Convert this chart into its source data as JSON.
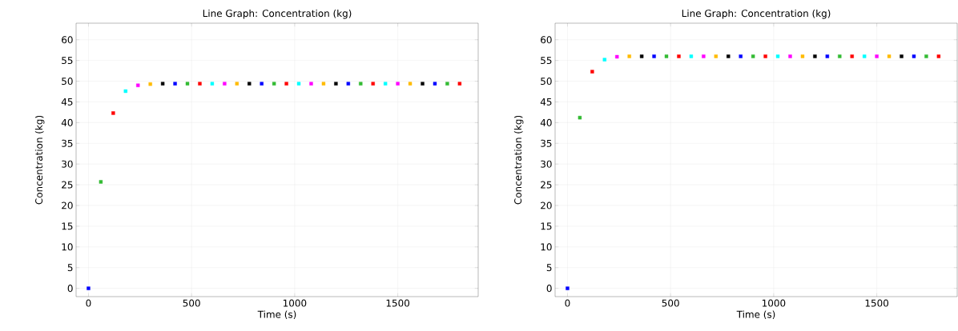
{
  "chart_data": [
    {
      "type": "scatter",
      "title": "Line Graph: Concentration (kg)",
      "xlabel": "Time (s)",
      "ylabel": "Concentration (kg)",
      "x": [
        0,
        60,
        120,
        180,
        240,
        300,
        360,
        420,
        480,
        540,
        600,
        660,
        720,
        780,
        840,
        900,
        960,
        1020,
        1080,
        1140,
        1200,
        1260,
        1320,
        1380,
        1440,
        1500,
        1560,
        1620,
        1680,
        1740,
        1800
      ],
      "values": [
        0,
        25.7,
        42.3,
        47.6,
        49.0,
        49.3,
        49.4,
        49.4,
        49.4,
        49.4,
        49.4,
        49.4,
        49.4,
        49.4,
        49.4,
        49.4,
        49.4,
        49.4,
        49.4,
        49.4,
        49.4,
        49.4,
        49.4,
        49.4,
        49.4,
        49.4,
        49.4,
        49.4,
        49.4,
        49.4,
        49.4
      ],
      "colors": [
        "#0000ff",
        "#33bb33",
        "#ff0000",
        "#00ffff",
        "#ff00ff",
        "#ffbb00",
        "#000000",
        "#0000ff",
        "#33bb33",
        "#ff0000",
        "#00ffff",
        "#ff00ff",
        "#ffbb00",
        "#000000",
        "#0000ff",
        "#33bb33",
        "#ff0000",
        "#00ffff",
        "#ff00ff",
        "#ffbb00",
        "#000000",
        "#0000ff",
        "#33bb33",
        "#ff0000",
        "#00ffff",
        "#ff00ff",
        "#ffbb00",
        "#000000",
        "#0000ff",
        "#33bb33",
        "#ff0000"
      ],
      "marker": "square",
      "grid": true,
      "xlim": [
        -60,
        1890
      ],
      "ylim": [
        -2,
        64
      ],
      "xticks": [
        0,
        500,
        1000,
        1500
      ],
      "yticks": [
        0,
        5,
        10,
        15,
        20,
        25,
        30,
        35,
        40,
        45,
        50,
        55,
        60
      ]
    },
    {
      "type": "scatter",
      "title": "Line Graph: Concentration (kg)",
      "xlabel": "Time (s)",
      "ylabel": "Concentration (kg)",
      "x": [
        0,
        60,
        120,
        180,
        240,
        300,
        360,
        420,
        480,
        540,
        600,
        660,
        720,
        780,
        840,
        900,
        960,
        1020,
        1080,
        1140,
        1200,
        1260,
        1320,
        1380,
        1440,
        1500,
        1560,
        1620,
        1680,
        1740,
        1800
      ],
      "values": [
        0,
        41.2,
        52.3,
        55.2,
        55.9,
        56.0,
        56.0,
        56.0,
        56.0,
        56.0,
        56.0,
        56.0,
        56.0,
        56.0,
        56.0,
        56.0,
        56.0,
        56.0,
        56.0,
        56.0,
        56.0,
        56.0,
        56.0,
        56.0,
        56.0,
        56.0,
        56.0,
        56.0,
        56.0,
        56.0,
        56.0
      ],
      "colors": [
        "#0000ff",
        "#33bb33",
        "#ff0000",
        "#00ffff",
        "#ff00ff",
        "#ffbb00",
        "#000000",
        "#0000ff",
        "#33bb33",
        "#ff0000",
        "#00ffff",
        "#ff00ff",
        "#ffbb00",
        "#000000",
        "#0000ff",
        "#33bb33",
        "#ff0000",
        "#00ffff",
        "#ff00ff",
        "#ffbb00",
        "#000000",
        "#0000ff",
        "#33bb33",
        "#ff0000",
        "#00ffff",
        "#ff00ff",
        "#ffbb00",
        "#000000",
        "#0000ff",
        "#33bb33",
        "#ff0000"
      ],
      "marker": "square",
      "grid": true,
      "xlim": [
        -60,
        1890
      ],
      "ylim": [
        -2,
        64
      ],
      "xticks": [
        0,
        500,
        1000,
        1500
      ],
      "yticks": [
        0,
        5,
        10,
        15,
        20,
        25,
        30,
        35,
        40,
        45,
        50,
        55,
        60
      ]
    }
  ]
}
